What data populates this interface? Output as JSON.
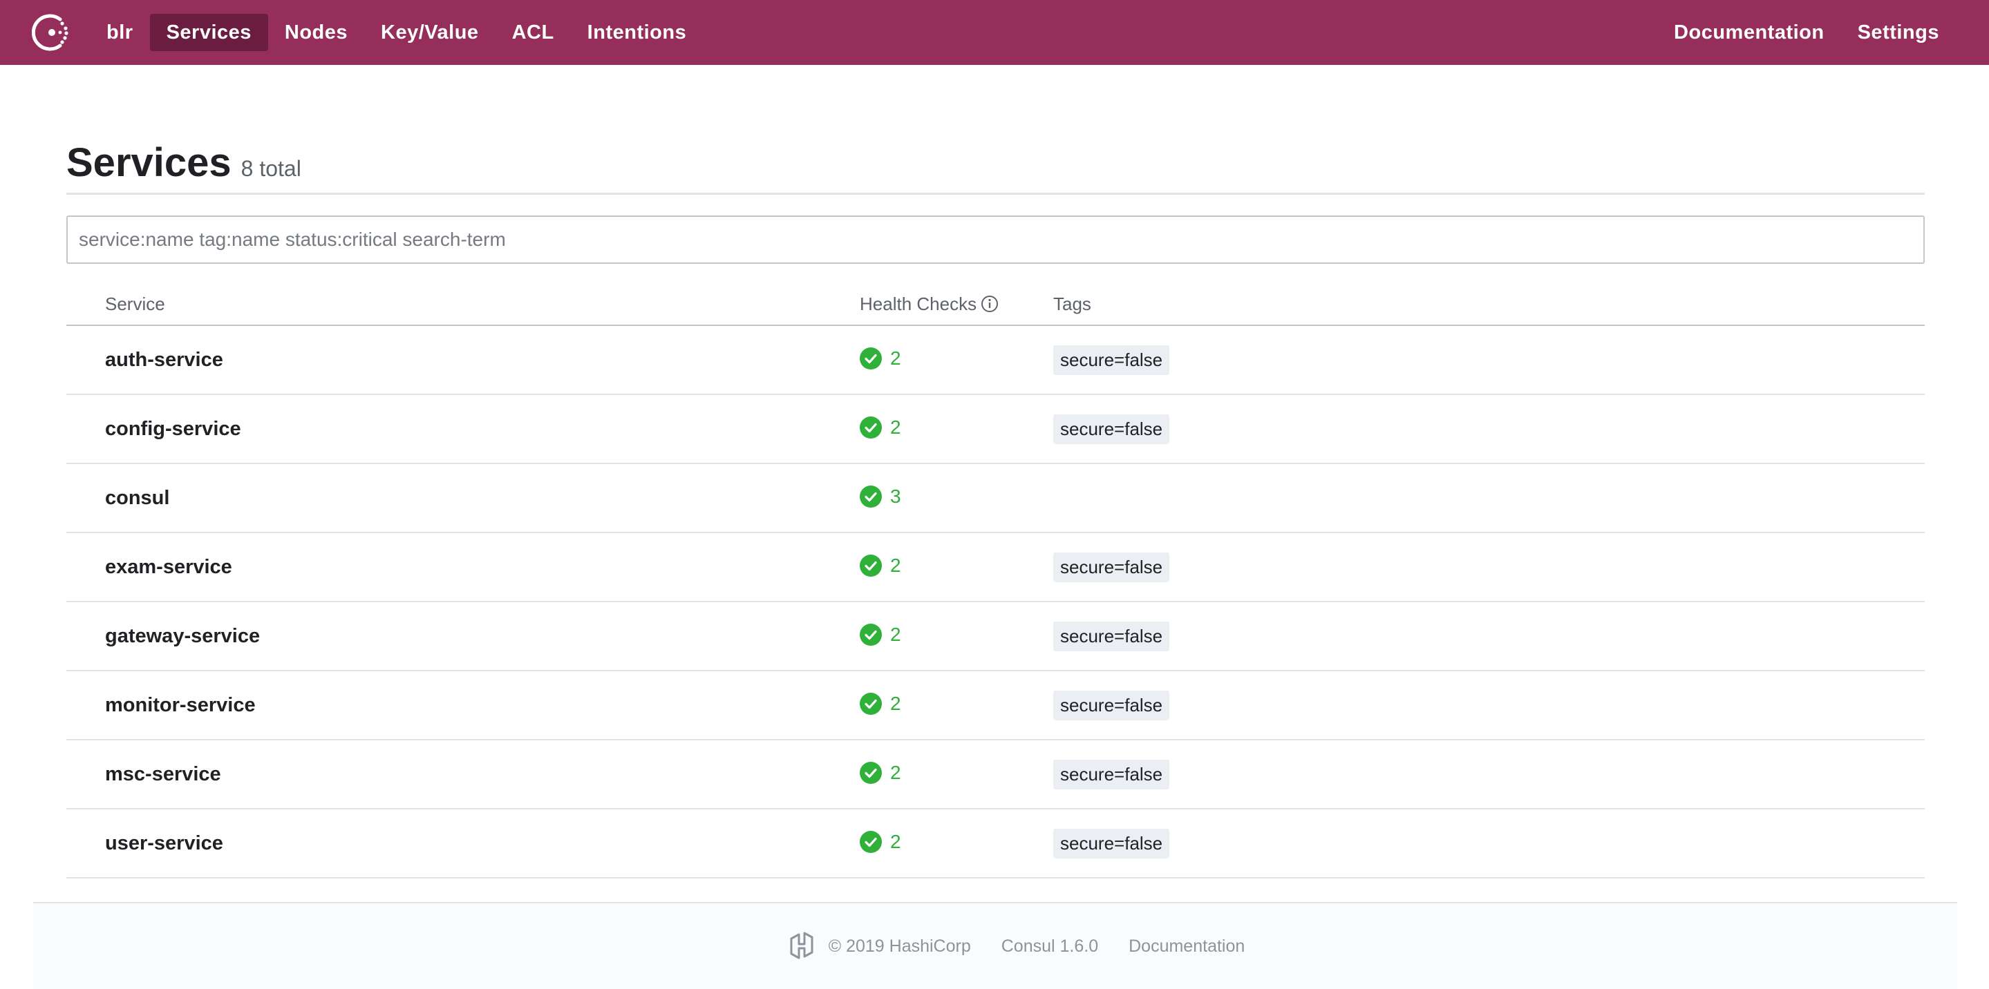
{
  "header": {
    "datacenter": "blr",
    "nav": [
      {
        "label": "Services",
        "active": true
      },
      {
        "label": "Nodes",
        "active": false
      },
      {
        "label": "Key/Value",
        "active": false
      },
      {
        "label": "ACL",
        "active": false
      },
      {
        "label": "Intentions",
        "active": false
      }
    ],
    "right": {
      "documentation": "Documentation",
      "settings": "Settings"
    }
  },
  "page": {
    "title": "Services",
    "count": "8 total",
    "search_placeholder": "service:name tag:name status:critical search-term"
  },
  "table": {
    "columns": {
      "service": "Service",
      "health": "Health Checks",
      "tags": "Tags"
    },
    "rows": [
      {
        "name": "auth-service",
        "checks": "2",
        "tag": "secure=false"
      },
      {
        "name": "config-service",
        "checks": "2",
        "tag": "secure=false"
      },
      {
        "name": "consul",
        "checks": "3",
        "tag": ""
      },
      {
        "name": "exam-service",
        "checks": "2",
        "tag": "secure=false"
      },
      {
        "name": "gateway-service",
        "checks": "2",
        "tag": "secure=false"
      },
      {
        "name": "monitor-service",
        "checks": "2",
        "tag": "secure=false"
      },
      {
        "name": "msc-service",
        "checks": "2",
        "tag": "secure=false"
      },
      {
        "name": "user-service",
        "checks": "2",
        "tag": "secure=false"
      }
    ]
  },
  "footer": {
    "copyright": "© 2019 HashiCorp",
    "version": "Consul 1.6.0",
    "documentation": "Documentation"
  },
  "colors": {
    "brand": "#962e5c",
    "brand_active": "#6a1d3f",
    "passing": "#2eb039"
  }
}
